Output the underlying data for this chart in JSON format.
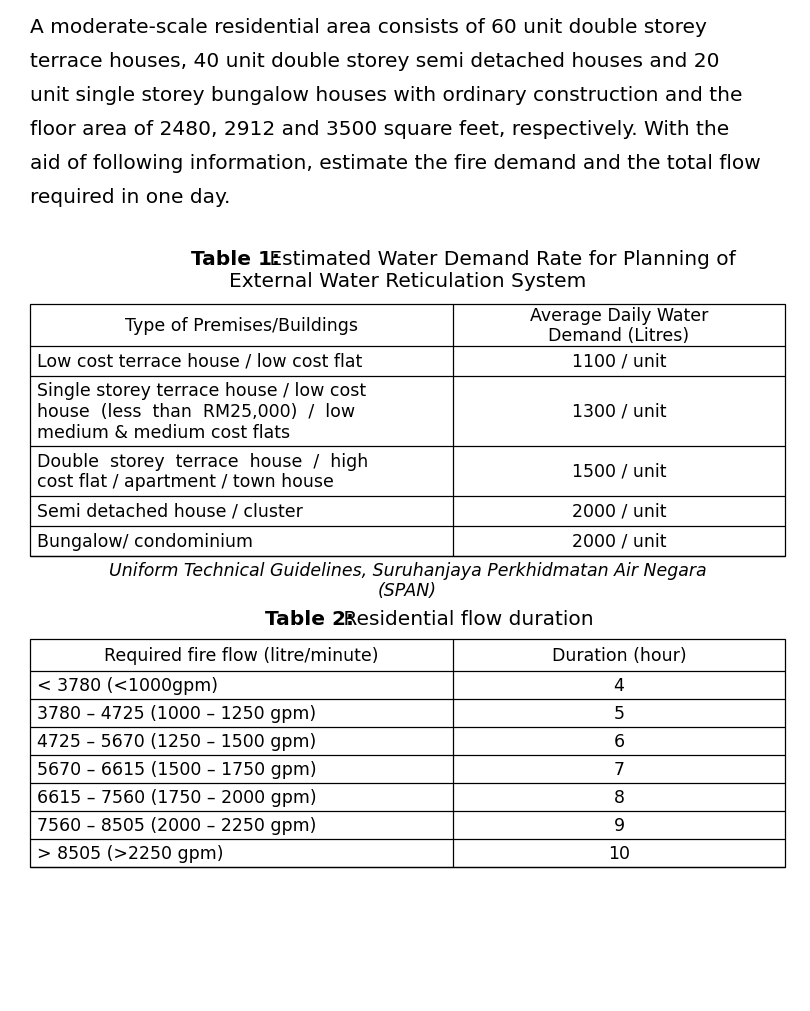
{
  "intro_lines": [
    "A moderate-scale residential area consists of 60 unit double storey",
    "terrace houses, 40 unit double storey semi detached houses and 20",
    "unit single storey bungalow houses with ordinary construction and the",
    "floor area of 2480, 2912 and 3500 square feet, respectively. With the",
    "aid of following information, estimate the fire demand and the total flow",
    "required in one day."
  ],
  "table1_title_bold": "Table 1:",
  "table1_title_normal": " Estimated Water Demand Rate for Planning of",
  "table1_title_line2": "External Water Reticulation System",
  "table1_col1_header": "Type of Premises/Buildings",
  "table1_col2_header": "Average Daily Water\nDemand (Litres)",
  "table1_rows": [
    [
      "Low cost terrace house / low cost flat",
      "1100 / unit"
    ],
    [
      "Single storey terrace house / low cost\nhouse  (less  than  RM25,000)  /  low\nmedium & medium cost flats",
      "1300 / unit"
    ],
    [
      "Double  storey  terrace  house  /  high\ncost flat / apartment / town house",
      "1500 / unit"
    ],
    [
      "Semi detached house / cluster",
      "2000 / unit"
    ],
    [
      "Bungalow/ condominium",
      "2000 / unit"
    ]
  ],
  "table1_footnote_line1": "Uniform Technical Guidelines, Suruhanjaya Perkhidmatan Air Negara",
  "table1_footnote_line2": "(SPAN)",
  "table2_title_bold": "Table 2:",
  "table2_title_normal": " Residential flow duration",
  "table2_col1_header": "Required fire flow (litre/minute)",
  "table2_col2_header": "Duration (hour)",
  "table2_rows": [
    [
      "< 3780 (<1000gpm)",
      "4"
    ],
    [
      "3780 – 4725 (1000 – 1250 gpm)",
      "5"
    ],
    [
      "4725 – 5670 (1250 – 1500 gpm)",
      "6"
    ],
    [
      "5670 – 6615 (1500 – 1750 gpm)",
      "7"
    ],
    [
      "6615 – 7560 (1750 – 2000 gpm)",
      "8"
    ],
    [
      "7560 – 8505 (2000 – 2250 gpm)",
      "9"
    ],
    [
      "> 8505 (>2250 gpm)",
      "10"
    ]
  ],
  "bg_color": "#ffffff",
  "text_color": "#000000",
  "intro_fontsize": 14.5,
  "table_fontsize": 12.5,
  "title_fontsize": 14.5,
  "footnote_fontsize": 12.5,
  "fig_width": 8.1,
  "fig_height": 10.12,
  "dpi": 100
}
